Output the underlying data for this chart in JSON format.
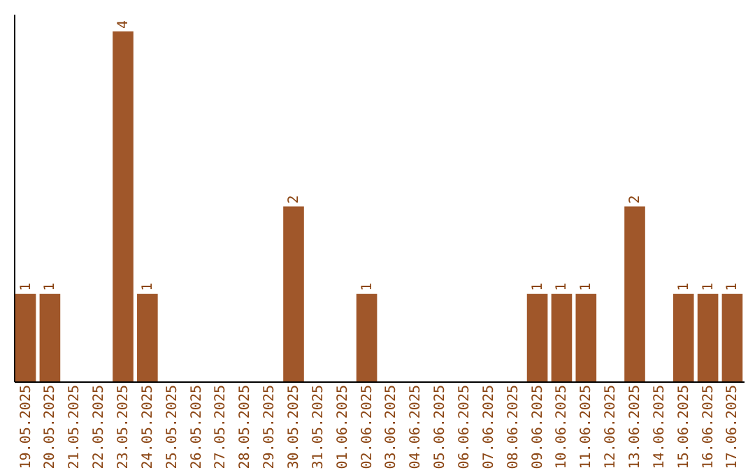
{
  "chart_data": {
    "type": "bar",
    "categories": [
      "19.05.2025",
      "20.05.2025",
      "21.05.2025",
      "22.05.2025",
      "23.05.2025",
      "24.05.2025",
      "25.05.2025",
      "26.05.2025",
      "27.05.2025",
      "28.05.2025",
      "29.05.2025",
      "30.05.2025",
      "31.05.2025",
      "01.06.2025",
      "02.06.2025",
      "03.06.2025",
      "04.06.2025",
      "05.06.2025",
      "06.06.2025",
      "07.06.2025",
      "08.06.2025",
      "09.06.2025",
      "10.06.2025",
      "11.06.2025",
      "12.06.2025",
      "13.06.2025",
      "14.06.2025",
      "15.06.2025",
      "16.06.2025",
      "17.06.2025"
    ],
    "values": [
      1,
      1,
      0,
      0,
      4,
      1,
      0,
      0,
      0,
      0,
      0,
      2,
      0,
      0,
      1,
      0,
      0,
      0,
      0,
      0,
      0,
      1,
      1,
      1,
      0,
      2,
      0,
      1,
      1,
      1
    ],
    "value_labels": [
      "1",
      "1",
      null,
      null,
      "4",
      "1",
      null,
      null,
      null,
      null,
      null,
      "2",
      null,
      null,
      "1",
      null,
      null,
      null,
      null,
      null,
      null,
      "1",
      "1",
      "1",
      null,
      "2",
      null,
      "1",
      "1",
      "1"
    ],
    "color": "#a0572a",
    "ylim": [
      0,
      4.2
    ],
    "tick_labels": "x",
    "grid": false
  }
}
